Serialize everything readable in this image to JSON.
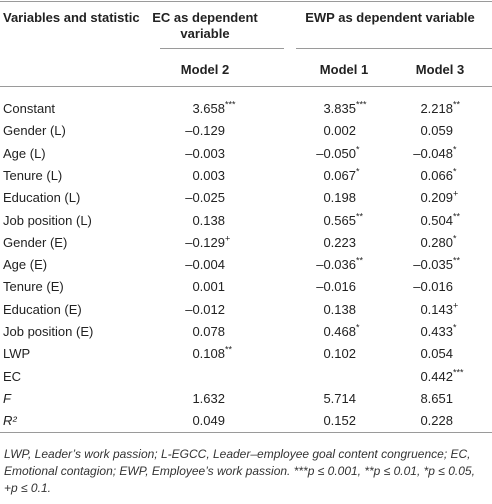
{
  "table": {
    "header": {
      "col0": "Variables and statistic",
      "group1": "EC as dependent variable",
      "group2": "EWP as dependent variable",
      "models": [
        "Model 2",
        "Model 1",
        "Model 3"
      ]
    },
    "rows": [
      {
        "label": "Constant",
        "cells": [
          {
            "value": "3.658",
            "sup": "***"
          },
          {
            "value": "3.835",
            "sup": "***"
          },
          {
            "value": "2.218",
            "sup": "**"
          }
        ]
      },
      {
        "label": "Gender (L)",
        "cells": [
          {
            "value": "–0.129"
          },
          {
            "value": "0.002"
          },
          {
            "value": "0.059"
          }
        ]
      },
      {
        "label": "Age (L)",
        "cells": [
          {
            "value": "–0.003"
          },
          {
            "value": "–0.050",
            "sup": "*"
          },
          {
            "value": "–0.048",
            "sup": "*"
          }
        ]
      },
      {
        "label": "Tenure (L)",
        "cells": [
          {
            "value": "0.003"
          },
          {
            "value": "0.067",
            "sup": "*"
          },
          {
            "value": "0.066",
            "sup": "*"
          }
        ]
      },
      {
        "label": "Education (L)",
        "cells": [
          {
            "value": "–0.025"
          },
          {
            "value": "0.198"
          },
          {
            "value": "0.209",
            "sup": "+"
          }
        ]
      },
      {
        "label": "Job position (L)",
        "cells": [
          {
            "value": "0.138"
          },
          {
            "value": "0.565",
            "sup": "**"
          },
          {
            "value": "0.504",
            "sup": "**"
          }
        ]
      },
      {
        "label": "Gender (E)",
        "cells": [
          {
            "value": "–0.129",
            "sup": "+"
          },
          {
            "value": "0.223"
          },
          {
            "value": "0.280",
            "sup": "*"
          }
        ]
      },
      {
        "label": "Age (E)",
        "cells": [
          {
            "value": "–0.004"
          },
          {
            "value": "–0.036",
            "sup": "**"
          },
          {
            "value": "–0.035",
            "sup": "**"
          }
        ]
      },
      {
        "label": "Tenure (E)",
        "cells": [
          {
            "value": "0.001"
          },
          {
            "value": "–0.016"
          },
          {
            "value": "–0.016"
          }
        ]
      },
      {
        "label": "Education (E)",
        "cells": [
          {
            "value": "–0.012"
          },
          {
            "value": "0.138"
          },
          {
            "value": "0.143",
            "sup": "+"
          }
        ]
      },
      {
        "label": "Job position (E)",
        "cells": [
          {
            "value": "0.078"
          },
          {
            "value": "0.468",
            "sup": "*"
          },
          {
            "value": "0.433",
            "sup": "*"
          }
        ]
      },
      {
        "label": "LWP",
        "cells": [
          {
            "value": "0.108",
            "sup": "**"
          },
          {
            "value": "0.102"
          },
          {
            "value": "0.054"
          }
        ]
      },
      {
        "label": "EC",
        "cells": [
          null,
          null,
          {
            "value": "0.442",
            "sup": "***"
          }
        ]
      },
      {
        "label": "F",
        "italic": true,
        "cells": [
          {
            "value": "1.632"
          },
          {
            "value": "5.714"
          },
          {
            "value": "8.651"
          }
        ]
      },
      {
        "label": "R²",
        "italic": true,
        "cells": [
          {
            "value": "0.049"
          },
          {
            "value": "0.152"
          },
          {
            "value": "0.228"
          }
        ]
      }
    ],
    "footnote": "LWP, Leader’s work passion; L-EGCC, Leader–employee goal content congruence; EC, Emotional contagion; EWP, Employee’s work passion. ***p ≤ 0.001, **p ≤ 0.01, *p ≤ 0.05, +p ≤ 0.1."
  }
}
